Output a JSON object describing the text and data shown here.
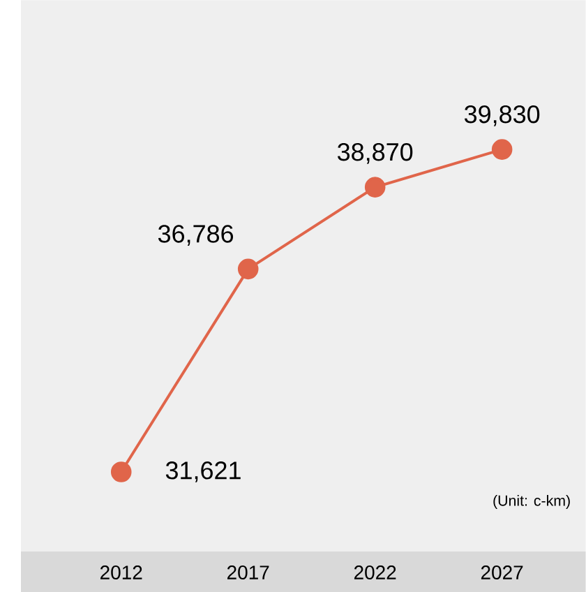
{
  "chart_data": {
    "type": "line",
    "categories": [
      "2012",
      "2017",
      "2022",
      "2027"
    ],
    "series": [
      {
        "color": "#e0654a",
        "values": [
          31621,
          36786,
          38870,
          39830
        ],
        "value_labels": [
          "31,621",
          "36,786",
          "38,870",
          "39,830"
        ]
      }
    ],
    "marker": "circle",
    "line_style": "solid",
    "annotations": [
      "(Unit: c-km)"
    ]
  }
}
